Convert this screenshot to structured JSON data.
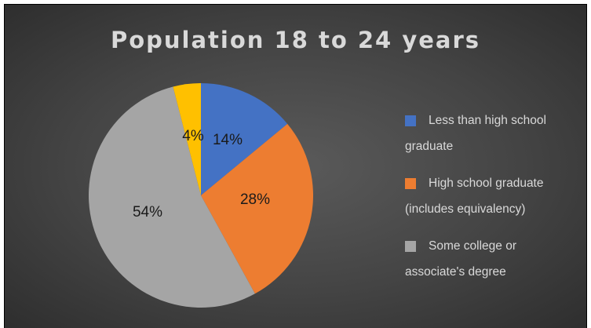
{
  "chart_data": {
    "type": "pie",
    "title": "Population 18 to 24 years",
    "categories": [
      "Less than high school graduate",
      "High school graduate (includes equivalency)",
      "Some college or associate's degree",
      ""
    ],
    "values": [
      14,
      28,
      54,
      4
    ],
    "data_labels": [
      "14%",
      "28%",
      "54%",
      "4%"
    ],
    "colors": [
      "#4472c4",
      "#ed7d31",
      "#a5a5a5",
      "#ffc000"
    ],
    "legend_position": "right",
    "legend": [
      {
        "label": "Less than high school graduate",
        "color": "#4472c4"
      },
      {
        "label": "High school graduate (includes equivalency)",
        "color": "#ed7d31"
      },
      {
        "label": "Some college or associate's degree",
        "color": "#a5a5a5"
      }
    ]
  }
}
